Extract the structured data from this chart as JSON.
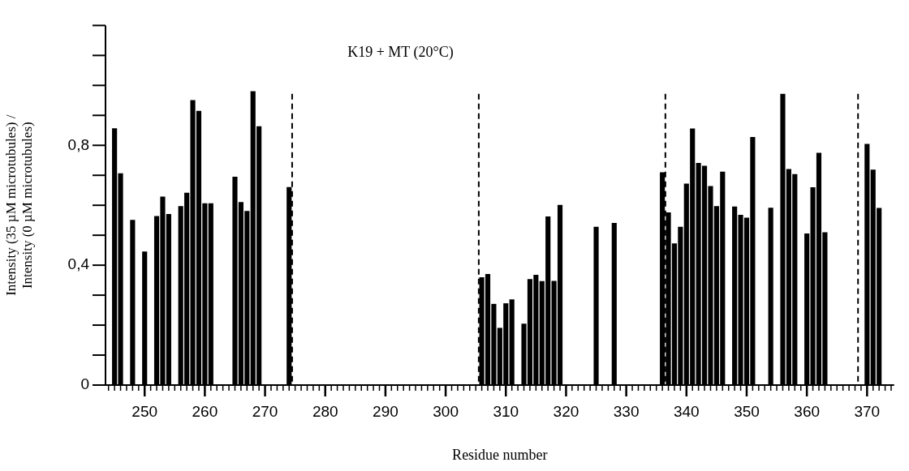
{
  "chart_data": {
    "type": "bar",
    "title": "K19 + MT (20°C)",
    "xlabel": "Residue number",
    "ylabel": "Intensity (35 µM microtubules) /\nIntensity (0 µM microtubules)",
    "x": [
      245,
      246,
      248,
      250,
      252,
      253,
      254,
      256,
      257,
      258,
      259,
      260,
      261,
      265,
      266,
      267,
      268,
      269,
      274,
      306,
      307,
      308,
      309,
      310,
      311,
      313,
      314,
      315,
      316,
      317,
      318,
      319,
      325,
      328,
      336,
      337,
      338,
      339,
      340,
      341,
      342,
      343,
      344,
      345,
      346,
      348,
      349,
      350,
      351,
      354,
      356,
      357,
      358,
      360,
      361,
      362,
      363,
      370,
      371,
      372
    ],
    "values": [
      0.856,
      0.706,
      0.55,
      0.445,
      0.563,
      0.628,
      0.57,
      0.596,
      0.641,
      0.95,
      0.914,
      0.606,
      0.606,
      0.694,
      0.61,
      0.58,
      0.98,
      0.863,
      0.66,
      0.359,
      0.37,
      0.27,
      0.19,
      0.272,
      0.285,
      0.204,
      0.353,
      0.367,
      0.346,
      0.562,
      0.347,
      0.6,
      0.527,
      0.54,
      0.709,
      0.575,
      0.472,
      0.527,
      0.671,
      0.855,
      0.74,
      0.731,
      0.663,
      0.596,
      0.711,
      0.595,
      0.567,
      0.558,
      0.827,
      0.591,
      0.971,
      0.72,
      0.703,
      0.505,
      0.659,
      0.774,
      0.509,
      0.804,
      0.718,
      0.59
    ],
    "color": "#000000",
    "xlim": [
      244,
      374
    ],
    "xticks": [
      {
        "value": 244,
        "label": null
      },
      {
        "value": 245,
        "label": null
      },
      {
        "value": 246,
        "label": null
      },
      {
        "value": 247,
        "label": null
      },
      {
        "value": 248,
        "label": null
      },
      {
        "value": 249,
        "label": null
      },
      250,
      {
        "value": 251,
        "label": null
      },
      {
        "value": 252,
        "label": null
      },
      {
        "value": 253,
        "label": null
      },
      {
        "value": 254,
        "label": null
      },
      {
        "value": 255,
        "label": null
      },
      {
        "value": 256,
        "label": null
      },
      {
        "value": 257,
        "label": null
      },
      {
        "value": 258,
        "label": null
      },
      {
        "value": 259,
        "label": null
      },
      260,
      {
        "value": 261,
        "label": null
      },
      {
        "value": 262,
        "label": null
      },
      {
        "value": 263,
        "label": null
      },
      {
        "value": 264,
        "label": null
      },
      {
        "value": 265,
        "label": null
      },
      {
        "value": 266,
        "label": null
      },
      {
        "value": 267,
        "label": null
      },
      {
        "value": 268,
        "label": null
      },
      {
        "value": 269,
        "label": null
      },
      270,
      {
        "value": 271,
        "label": null
      },
      {
        "value": 272,
        "label": null
      },
      {
        "value": 273,
        "label": null
      },
      {
        "value": 274,
        "label": null
      },
      {
        "value": 275,
        "label": null
      },
      {
        "value": 276,
        "label": null
      },
      {
        "value": 277,
        "label": null
      },
      {
        "value": 278,
        "label": null
      },
      {
        "value": 279,
        "label": null
      },
      280,
      {
        "value": 281,
        "label": null
      },
      {
        "value": 282,
        "label": null
      },
      {
        "value": 283,
        "label": null
      },
      {
        "value": 284,
        "label": null
      },
      {
        "value": 285,
        "label": null
      },
      {
        "value": 286,
        "label": null
      },
      {
        "value": 287,
        "label": null
      },
      {
        "value": 288,
        "label": null
      },
      {
        "value": 289,
        "label": null
      },
      290,
      {
        "value": 291,
        "label": null
      },
      {
        "value": 292,
        "label": null
      },
      {
        "value": 293,
        "label": null
      },
      {
        "value": 294,
        "label": null
      },
      {
        "value": 295,
        "label": null
      },
      {
        "value": 296,
        "label": null
      },
      {
        "value": 297,
        "label": null
      },
      {
        "value": 298,
        "label": null
      },
      {
        "value": 299,
        "label": null
      },
      300,
      {
        "value": 301,
        "label": null
      },
      {
        "value": 302,
        "label": null
      },
      {
        "value": 303,
        "label": null
      },
      {
        "value": 304,
        "label": null
      },
      {
        "value": 305,
        "label": null
      },
      {
        "value": 306,
        "label": null
      },
      {
        "value": 307,
        "label": null
      },
      {
        "value": 308,
        "label": null
      },
      {
        "value": 309,
        "label": null
      },
      310,
      {
        "value": 311,
        "label": null
      },
      {
        "value": 312,
        "label": null
      },
      {
        "value": 313,
        "label": null
      },
      {
        "value": 314,
        "label": null
      },
      {
        "value": 315,
        "label": null
      },
      {
        "value": 316,
        "label": null
      },
      {
        "value": 317,
        "label": null
      },
      {
        "value": 318,
        "label": null
      },
      {
        "value": 319,
        "label": null
      },
      320,
      {
        "value": 321,
        "label": null
      },
      {
        "value": 322,
        "label": null
      },
      {
        "value": 323,
        "label": null
      },
      {
        "value": 324,
        "label": null
      },
      {
        "value": 325,
        "label": null
      },
      {
        "value": 326,
        "label": null
      },
      {
        "value": 327,
        "label": null
      },
      {
        "value": 328,
        "label": null
      },
      {
        "value": 329,
        "label": null
      },
      330,
      {
        "value": 331,
        "label": null
      },
      {
        "value": 332,
        "label": null
      },
      {
        "value": 333,
        "label": null
      },
      {
        "value": 334,
        "label": null
      },
      {
        "value": 335,
        "label": null
      },
      {
        "value": 336,
        "label": null
      },
      {
        "value": 337,
        "label": null
      },
      {
        "value": 338,
        "label": null
      },
      {
        "value": 339,
        "label": null
      },
      340,
      {
        "value": 341,
        "label": null
      },
      {
        "value": 342,
        "label": null
      },
      {
        "value": 343,
        "label": null
      },
      {
        "value": 344,
        "label": null
      },
      {
        "value": 345,
        "label": null
      },
      {
        "value": 346,
        "label": null
      },
      {
        "value": 347,
        "label": null
      },
      {
        "value": 348,
        "label": null
      },
      {
        "value": 349,
        "label": null
      },
      350,
      {
        "value": 351,
        "label": null
      },
      {
        "value": 352,
        "label": null
      },
      {
        "value": 353,
        "label": null
      },
      {
        "value": 354,
        "label": null
      },
      {
        "value": 355,
        "label": null
      },
      {
        "value": 356,
        "label": null
      },
      {
        "value": 357,
        "label": null
      },
      {
        "value": 358,
        "label": null
      },
      {
        "value": 359,
        "label": null
      },
      360,
      {
        "value": 361,
        "label": null
      },
      {
        "value": 362,
        "label": null
      },
      {
        "value": 363,
        "label": null
      },
      {
        "value": 364,
        "label": null
      },
      {
        "value": 365,
        "label": null
      },
      {
        "value": 366,
        "label": null
      },
      {
        "value": 367,
        "label": null
      },
      {
        "value": 368,
        "label": null
      },
      {
        "value": 369,
        "label": null
      },
      370,
      {
        "value": 371,
        "label": null
      },
      {
        "value": 372,
        "label": null
      },
      {
        "value": 373,
        "label": null
      },
      {
        "value": 374,
        "label": null
      }
    ],
    "ylim": [
      0,
      1.2
    ],
    "yticks": [
      0,
      {
        "value": 0.1,
        "label": null
      },
      {
        "value": 0.2,
        "label": null
      },
      {
        "value": 0.3,
        "label": null
      },
      {
        "value": 0.4,
        "label": "0,4"
      },
      {
        "value": 0.5,
        "label": null
      },
      {
        "value": 0.6,
        "label": null
      },
      {
        "value": 0.7,
        "label": null
      },
      {
        "value": 0.8,
        "label": "0,8"
      },
      {
        "value": 0.9,
        "label": null
      },
      {
        "value": 1.0,
        "label": null
      },
      {
        "value": 1.1,
        "label": null
      },
      {
        "value": 1.2,
        "label": null
      }
    ],
    "ref_lines": [
      {
        "axis": "x",
        "value": 274.5,
        "line_style": "dashed",
        "color": "#000000"
      },
      {
        "axis": "x",
        "value": 305.5,
        "line_style": "dashed",
        "color": "#000000"
      },
      {
        "axis": "x",
        "value": 336.5,
        "line_style": "dashed",
        "color": "#000000"
      },
      {
        "axis": "x",
        "value": 368.5,
        "line_style": "dashed",
        "color": "#000000"
      }
    ]
  }
}
